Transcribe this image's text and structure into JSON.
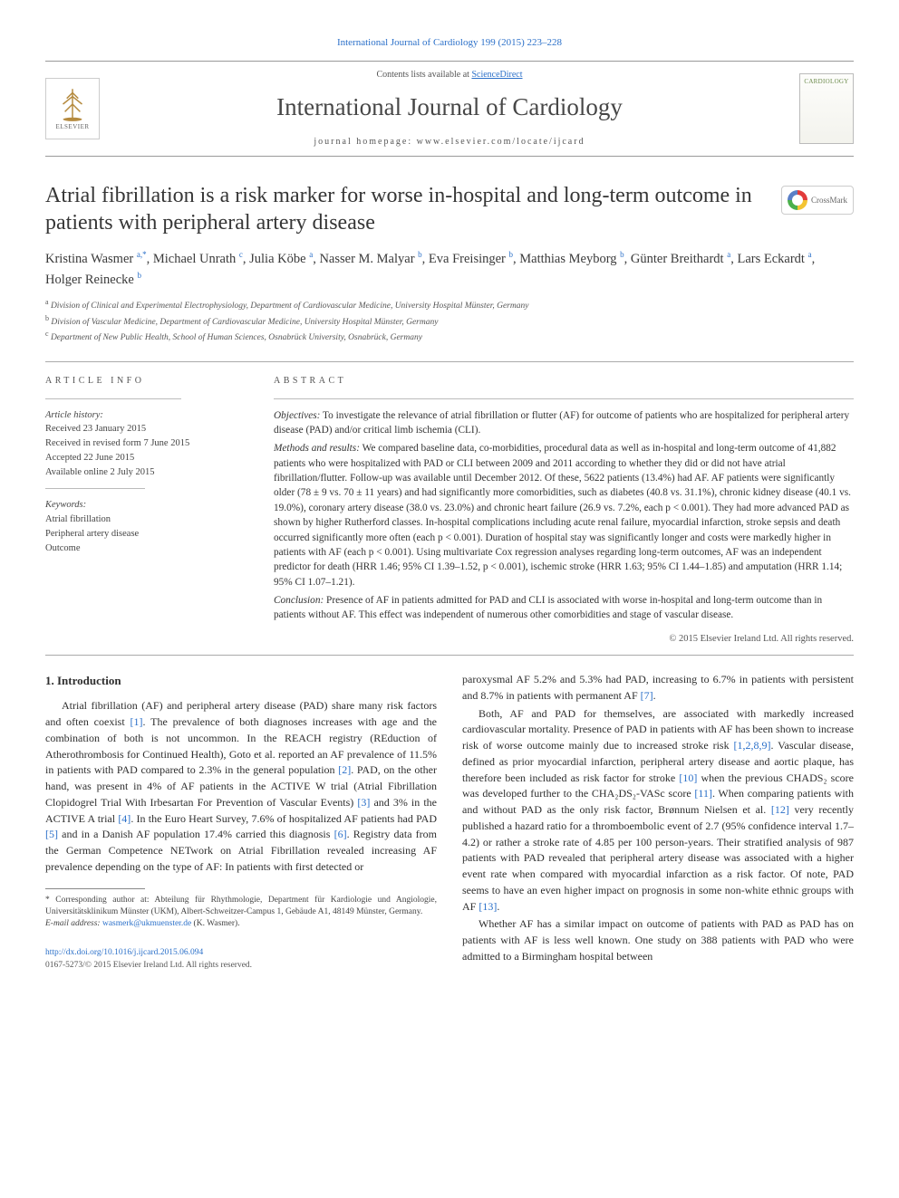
{
  "top_citation": "International Journal of Cardiology 199 (2015) 223–228",
  "header": {
    "contents_prefix": "Contents lists available at ",
    "contents_link": "ScienceDirect",
    "journal": "International Journal of Cardiology",
    "homepage_prefix": "journal homepage: ",
    "homepage": "www.elsevier.com/locate/ijcard",
    "elsevier_label": "ELSEVIER",
    "cover_label": "CARDIOLOGY"
  },
  "article": {
    "title": "Atrial fibrillation is a risk marker for worse in-hospital and long-term outcome in patients with peripheral artery disease",
    "crossmark": "CrossMark",
    "authors_html": "Kristina Wasmer <sup>a,*</sup>, Michael Unrath <sup>c</sup>, Julia Köbe <sup>a</sup>, Nasser M. Malyar <sup>b</sup>, Eva Freisinger <sup>b</sup>, Matthias Meyborg <sup>b</sup>, Günter Breithardt <sup>a</sup>, Lars Eckardt <sup>a</sup>, Holger Reinecke <sup>b</sup>",
    "affiliations": [
      "Division of Clinical and Experimental Electrophysiology, Department of Cardiovascular Medicine, University Hospital Münster, Germany",
      "Division of Vascular Medicine, Department of Cardiovascular Medicine, University Hospital Münster, Germany",
      "Department of New Public Health, School of Human Sciences, Osnabrück University, Osnabrück, Germany"
    ],
    "affil_marks": [
      "a",
      "b",
      "c"
    ]
  },
  "info": {
    "head": "article info",
    "history_label": "Article history:",
    "history": [
      "Received 23 January 2015",
      "Received in revised form 7 June 2015",
      "Accepted 22 June 2015",
      "Available online 2 July 2015"
    ],
    "keywords_label": "Keywords:",
    "keywords": [
      "Atrial fibrillation",
      "Peripheral artery disease",
      "Outcome"
    ]
  },
  "abstract": {
    "head": "abstract",
    "objectives_label": "Objectives:",
    "objectives": " To investigate the relevance of atrial fibrillation or flutter (AF) for outcome of patients who are hospitalized for peripheral artery disease (PAD) and/or critical limb ischemia (CLI).",
    "methods_label": "Methods and results:",
    "methods": " We compared baseline data, co-morbidities, procedural data as well as in-hospital and long-term outcome of 41,882 patients who were hospitalized with PAD or CLI between 2009 and 2011 according to whether they did or did not have atrial fibrillation/flutter. Follow-up was available until December 2012. Of these, 5622 patients (13.4%) had AF. AF patients were significantly older (78 ± 9 vs. 70 ± 11 years) and had significantly more comorbidities, such as diabetes (40.8 vs. 31.1%), chronic kidney disease (40.1 vs. 19.0%), coronary artery disease (38.0 vs. 23.0%) and chronic heart failure (26.9 vs. 7.2%, each p < 0.001). They had more advanced PAD as shown by higher Rutherford classes. In-hospital complications including acute renal failure, myocardial infarction, stroke sepsis and death occurred significantly more often (each p < 0.001). Duration of hospital stay was significantly longer and costs were markedly higher in patients with AF (each p < 0.001). Using multivariate Cox regression analyses regarding long-term outcomes, AF was an independent predictor for death (HRR 1.46; 95% CI 1.39–1.52, p < 0.001), ischemic stroke (HRR 1.63; 95% CI 1.44–1.85) and amputation (HRR 1.14; 95% CI 1.07–1.21).",
    "conclusion_label": "Conclusion:",
    "conclusion": " Presence of AF in patients admitted for PAD and CLI is associated with worse in-hospital and long-term outcome than in patients without AF. This effect was independent of numerous other comorbidities and stage of vascular disease.",
    "copyright": "© 2015 Elsevier Ireland Ltd. All rights reserved."
  },
  "body": {
    "intro_head": "1. Introduction",
    "left_paras": [
      "Atrial fibrillation (AF) and peripheral artery disease (PAD) share many risk factors and often coexist [1]. The prevalence of both diagnoses increases with age and the combination of both is not uncommon. In the REACH registry (REduction of Atherothrombosis for Continued Health), Goto et al. reported an AF prevalence of 11.5% in patients with PAD compared to 2.3% in the general population [2]. PAD, on the other hand, was present in 4% of AF patients in the ACTIVE W trial (Atrial Fibrillation Clopidogrel Trial With Irbesartan For Prevention of Vascular Events) [3] and 3% in the ACTIVE A trial [4]. In the Euro Heart Survey, 7.6% of hospitalized AF patients had PAD [5] and in a Danish AF population 17.4% carried this diagnosis [6]. Registry data from the German Competence NETwork on Atrial Fibrillation revealed increasing AF prevalence depending on the type of AF: In patients with first detected or"
    ],
    "right_paras": [
      "paroxysmal AF 5.2% and 5.3% had PAD, increasing to 6.7% in patients with persistent and 8.7% in patients with permanent AF [7].",
      "Both, AF and PAD for themselves, are associated with markedly increased cardiovascular mortality. Presence of PAD in patients with AF has been shown to increase risk of worse outcome mainly due to increased stroke risk [1,2,8,9]. Vascular disease, defined as prior myocardial infarction, peripheral artery disease and aortic plaque, has therefore been included as risk factor for stroke [10] when the previous CHADS₂ score was developed further to the CHA₂DS₂-VASc score [11]. When comparing patients with and without PAD as the only risk factor, Brønnum Nielsen et al. [12] very recently published a hazard ratio for a thromboembolic event of 2.7 (95% confidence interval 1.7–4.2) or rather a stroke rate of 4.85 per 100 person-years. Their stratified analysis of 987 patients with PAD revealed that peripheral artery disease was associated with a higher event rate when compared with myocardial infarction as a risk factor. Of note, PAD seems to have an even higher impact on prognosis in some non-white ethnic groups with AF [13].",
      "Whether AF has a similar impact on outcome of patients with PAD as PAD has on patients with AF is less well known. One study on 388 patients with PAD who were admitted to a Birmingham hospital between"
    ],
    "refs": [
      "[1]",
      "[2]",
      "[3]",
      "[4]",
      "[5]",
      "[6]",
      "[7]",
      "[1,2,8,9]",
      "[10]",
      "[11]",
      "[12]",
      "[13]"
    ]
  },
  "footnote": {
    "corr_label": "* Corresponding author at: ",
    "corr": "Abteilung für Rhythmologie, Department für Kardiologie und Angiologie, Universitätsklinikum Münster (UKM), Albert-Schweitzer-Campus 1, Gebäude A1, 48149 Münster, Germany.",
    "email_label": "E-mail address: ",
    "email": "wasmerk@ukmuenster.de",
    "email_suffix": " (K. Wasmer)."
  },
  "doi": {
    "url": "http://dx.doi.org/10.1016/j.ijcard.2015.06.094",
    "line2": "0167-5273/© 2015 Elsevier Ireland Ltd. All rights reserved."
  },
  "colors": {
    "link": "#2b70c9",
    "text": "#333333",
    "rule": "#aaaaaa"
  }
}
